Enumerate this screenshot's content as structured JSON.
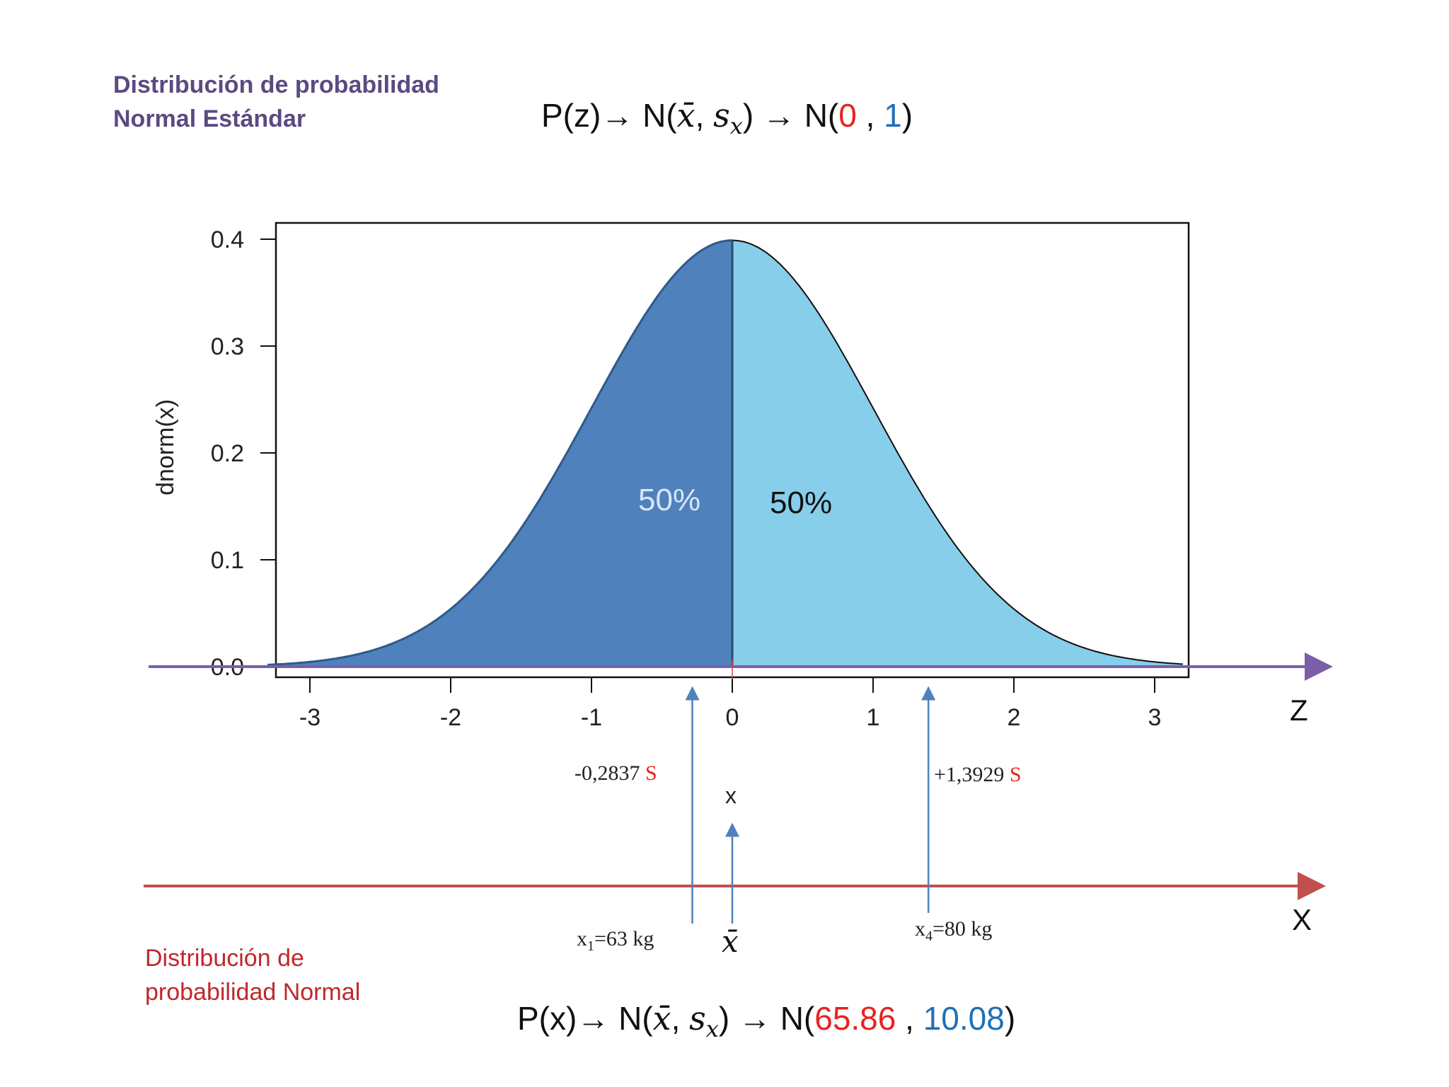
{
  "header": {
    "title_line1": "Distribución de probabilidad",
    "title_line2": "Normal Estándar",
    "formula_prefix": "P(z)→ N(",
    "formula_mid": ", ",
    "formula_close": ") → N(",
    "mean_value": "0",
    "sep": " , ",
    "sd_value": "1",
    "end": ")"
  },
  "footer": {
    "title_line1": "Distribución de",
    "title_line2": "probabilidad Normal",
    "formula_prefix": "P(x)→ N(",
    "formula_mid": ", ",
    "formula_close": ") → N(",
    "mean_value": "65.86",
    "sep": " , ",
    "sd_value": "10.08",
    "end": ")"
  },
  "math_symbols": {
    "xbar": "x̄",
    "s": "s",
    "s_sub": "x"
  },
  "chart_data": {
    "type": "area",
    "function": "standard normal density",
    "ylabel": "dnorm(x)",
    "xlim": [
      -3.3,
      3.2
    ],
    "ylim": [
      0,
      0.4
    ],
    "x_ticks": [
      "-3",
      "-2",
      "-1",
      "0",
      "1",
      "2",
      "3"
    ],
    "y_ticks": [
      "0.0",
      "0.1",
      "0.2",
      "0.3",
      "0.4"
    ],
    "regions": [
      {
        "from": -3.3,
        "to": 0,
        "label": "50%",
        "color": "#4f81bd"
      },
      {
        "from": 0,
        "to": 3.2,
        "label": "50%",
        "color": "#87ceeb"
      }
    ],
    "z_axis_label": "Z",
    "x_axis_label": "X",
    "markers": [
      {
        "z": -0.2837,
        "z_label": "-0,2837",
        "z_unit": "S",
        "x_label_main": "x",
        "x_label_sub": "1",
        "x_label_rest": "=63 kg"
      },
      {
        "z": 0,
        "z_label": "x",
        "x_symbol": "x̄"
      },
      {
        "z": 1.3929,
        "z_label": "+1,3929",
        "z_unit": "S",
        "x_label_main": "x",
        "x_label_sub": "4",
        "x_label_rest": "=80 kg"
      }
    ],
    "colors": {
      "left_area": "#4f81bd",
      "right_area": "#87ceeb",
      "z_axis": "#7a5fa8",
      "x_axis": "#c0504d",
      "marker_arrow": "#4f81bd"
    }
  }
}
